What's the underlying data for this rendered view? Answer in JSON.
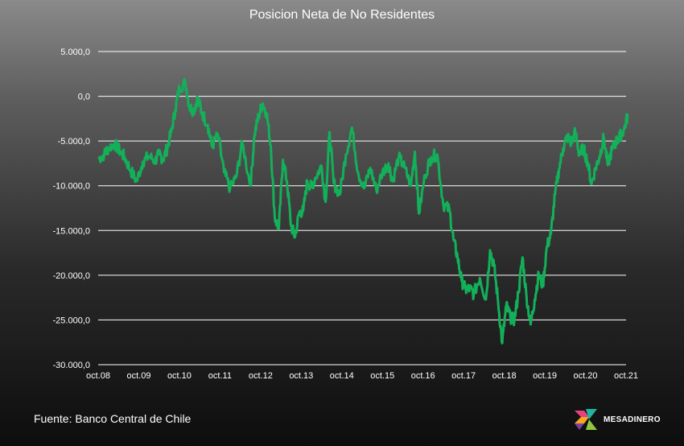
{
  "chart_data": {
    "type": "line",
    "title": "Posicion Neta de No Residentes",
    "xlabel": "",
    "ylabel": "",
    "ylim": [
      -30000,
      5000
    ],
    "yticks": [
      5000,
      0,
      -5000,
      -10000,
      -15000,
      -20000,
      -25000,
      -30000
    ],
    "ytick_labels": [
      "5.000,0",
      "0,0",
      "-5.000,0",
      "-10.000,0",
      "-15.000,0",
      "-20.000,0",
      "-25.000,0",
      "-30.000,0"
    ],
    "xtick_labels": [
      "oct.08",
      "oct.09",
      "oct.10",
      "oct.11",
      "oct.12",
      "oct.13",
      "oct.14",
      "oct.15",
      "oct.16",
      "oct.17",
      "oct.18",
      "oct.19",
      "oct.20",
      "oct.21"
    ],
    "grid": true,
    "series_color": "#13b05a",
    "x": [
      2008.75,
      2008.9,
      2009.0,
      2009.15,
      2009.3,
      2009.4,
      2009.55,
      2009.7,
      2009.85,
      2010.0,
      2010.15,
      2010.25,
      2010.35,
      2010.45,
      2010.55,
      2010.65,
      2010.75,
      2010.9,
      2011.0,
      2011.1,
      2011.2,
      2011.3,
      2011.45,
      2011.55,
      2011.7,
      2011.85,
      2012.0,
      2012.15,
      2012.3,
      2012.5,
      2012.6,
      2012.7,
      2012.8,
      2012.9,
      2013.0,
      2013.1,
      2013.2,
      2013.3,
      2013.4,
      2013.5,
      2013.6,
      2013.7,
      2013.8,
      2013.9,
      2014.0,
      2014.1,
      2014.25,
      2014.35,
      2014.45,
      2014.55,
      2014.7,
      2014.85,
      2015.0,
      2015.15,
      2015.3,
      2015.45,
      2015.6,
      2015.75,
      2015.9,
      2016.0,
      2016.15,
      2016.3,
      2016.45,
      2016.55,
      2016.65,
      2016.8,
      2016.95,
      2017.1,
      2017.25,
      2017.4,
      2017.5,
      2017.6,
      2017.7,
      2017.8,
      2017.9,
      2018.0,
      2018.15,
      2018.3,
      2018.4,
      2018.5,
      2018.6,
      2018.7,
      2018.8,
      2018.9,
      2019.0,
      2019.1,
      2019.2,
      2019.3,
      2019.4,
      2019.5,
      2019.6,
      2019.7,
      2019.8,
      2019.9,
      2020.0,
      2020.1,
      2020.2,
      2020.3,
      2020.4,
      2020.5,
      2020.6,
      2020.7,
      2020.8,
      2020.9,
      2021.0,
      2021.1,
      2021.2,
      2021.3,
      2021.4,
      2021.5,
      2021.6,
      2021.7,
      2021.8
    ],
    "values": [
      -7000,
      -6500,
      -5800,
      -5300,
      -6200,
      -6800,
      -8300,
      -9500,
      -7300,
      -6700,
      -7200,
      -6500,
      -7000,
      -5800,
      -4000,
      -1500,
      1000,
      1500,
      -1200,
      -1600,
      -200,
      -1800,
      -3200,
      -5600,
      -4300,
      -8500,
      -10300,
      -9000,
      -5200,
      -10000,
      -4300,
      -2200,
      -800,
      -1900,
      -5500,
      -13600,
      -14800,
      -7100,
      -9500,
      -14500,
      -15700,
      -13000,
      -12800,
      -9500,
      -10200,
      -9100,
      -7800,
      -11800,
      -4000,
      -9700,
      -11000,
      -6500,
      -3500,
      -8500,
      -10300,
      -8000,
      -10500,
      -8500,
      -7500,
      -9500,
      -6800,
      -8000,
      -10000,
      -6200,
      -13100,
      -8800,
      -6800,
      -6500,
      -12100,
      -12700,
      -16000,
      -18000,
      -20600,
      -21600,
      -21500,
      -22100,
      -20300,
      -22700,
      -17200,
      -19000,
      -23000,
      -27600,
      -23400,
      -24700,
      -25000,
      -21900,
      -18000,
      -22500,
      -25500,
      -22700,
      -19900,
      -21200,
      -16800,
      -15400,
      -11000,
      -8100,
      -5800,
      -4500,
      -5200,
      -4000,
      -6500,
      -5800,
      -7300,
      -9800,
      -8000,
      -6700,
      -4600,
      -7700,
      -6000,
      -5100,
      -4500,
      -3700,
      -2000
    ]
  },
  "title": "Posicion Neta de No Residentes",
  "source": "Fuente: Banco Central de Chile",
  "brand": {
    "prefix": "MESA",
    "highlight": "DINERO",
    "icon": "mesadinero-logo-icon"
  }
}
